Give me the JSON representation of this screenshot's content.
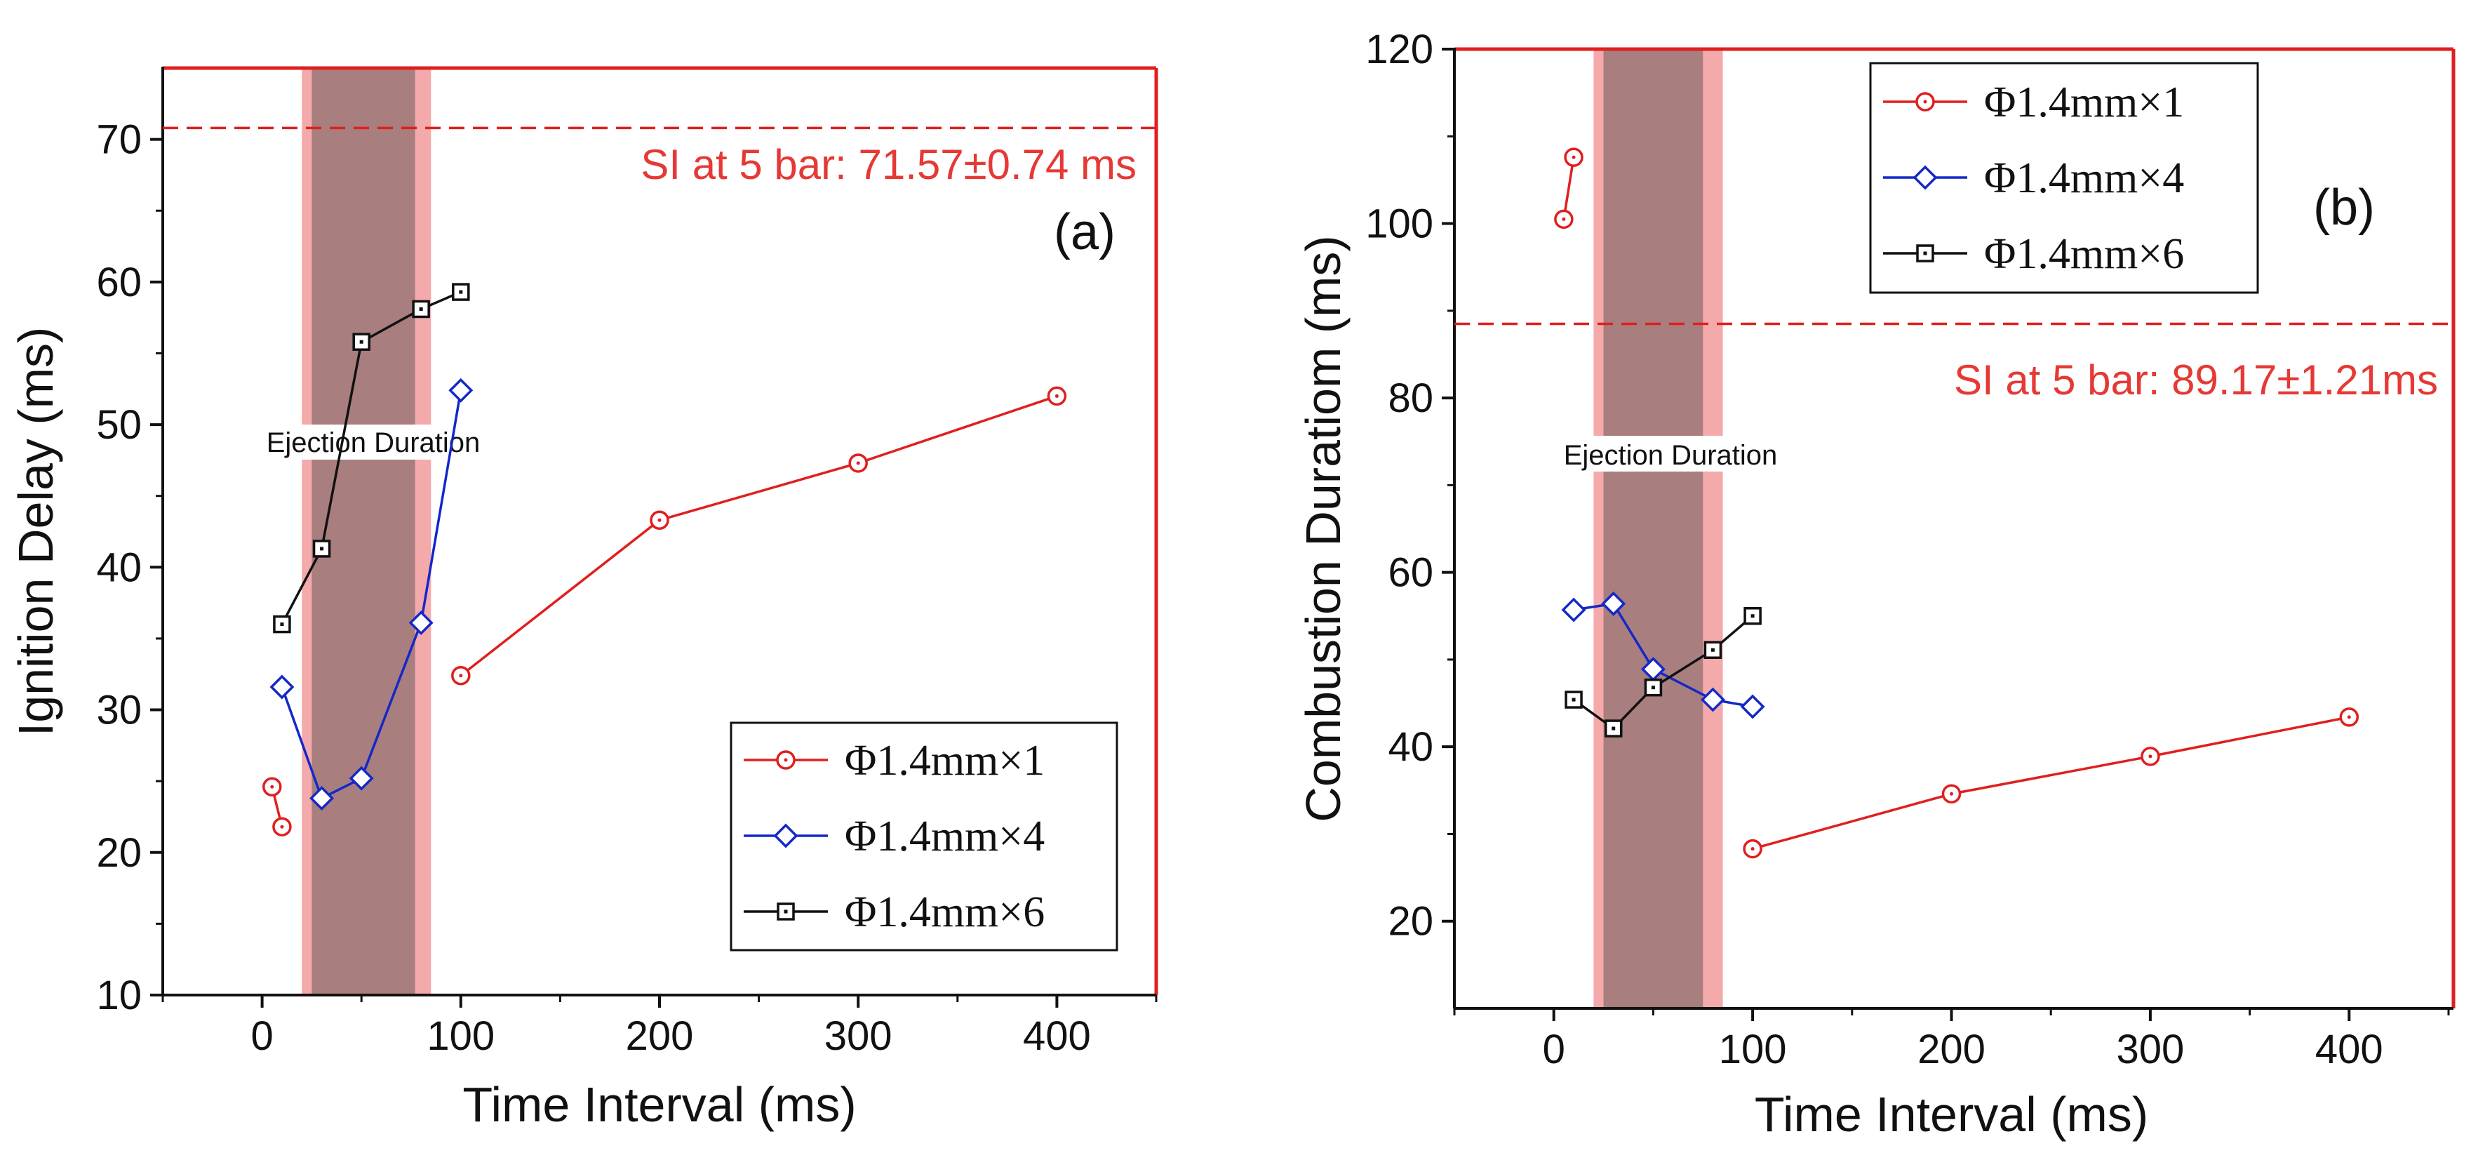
{
  "colors": {
    "frame_red": "#e01f1f",
    "series_red": "#e01f1f",
    "series_blue": "#1428c8",
    "series_black": "#111111",
    "band_light": "#f4aaaa",
    "band_dark": "#a87e7e"
  },
  "chart_data": [
    {
      "type": "line",
      "panel_label": "(a)",
      "xlabel": "Time Interval (ms)",
      "ylabel": "Ignition Delay (ms)",
      "xlim": [
        -50,
        450
      ],
      "ylim": [
        10,
        75
      ],
      "xticks": [
        0,
        100,
        200,
        300,
        400
      ],
      "yticks": [
        10,
        20,
        30,
        40,
        50,
        60,
        70
      ],
      "shaded_region": {
        "label": "Ejection Duration",
        "outer": [
          20,
          85
        ],
        "inner": [
          25,
          77
        ]
      },
      "reference_line": {
        "y": 70.8,
        "label": "SI at 5 bar:  71.57±0.74 ms"
      },
      "legend_position": "lower-right",
      "series": [
        {
          "name": "Φ1.4mm×1",
          "color": "#e01f1f",
          "marker": "circle",
          "segments": [
            [
              [
                5,
                24.6
              ],
              [
                10,
                21.8
              ]
            ],
            [
              [
                100,
                32.4
              ],
              [
                200,
                43.3
              ],
              [
                300,
                47.3
              ],
              [
                400,
                52.0
              ]
            ]
          ]
        },
        {
          "name": "Φ1.4mm×4",
          "color": "#1428c8",
          "marker": "diamond",
          "segments": [
            [
              [
                10,
                31.6
              ],
              [
                30,
                23.8
              ],
              [
                50,
                25.2
              ],
              [
                80,
                36.1
              ],
              [
                100,
                52.4
              ]
            ]
          ]
        },
        {
          "name": "Φ1.4mm×6",
          "color": "#111111",
          "marker": "square",
          "segments": [
            [
              [
                10,
                36.0
              ],
              [
                30,
                41.3
              ],
              [
                50,
                55.8
              ],
              [
                80,
                58.1
              ],
              [
                100,
                59.3
              ]
            ]
          ]
        }
      ]
    },
    {
      "type": "line",
      "panel_label": "(b)",
      "xlabel": "Time Interval (ms)",
      "ylabel": "Combustion Duratiom (ms)",
      "xlim": [
        -50,
        450
      ],
      "ylim": [
        10,
        120
      ],
      "xticks": [
        0,
        100,
        200,
        300,
        400
      ],
      "yticks": [
        20,
        40,
        60,
        80,
        100,
        120
      ],
      "shaded_region": {
        "label": "Ejection Duration",
        "outer": [
          20,
          85
        ],
        "inner": [
          25,
          75
        ]
      },
      "reference_line": {
        "y": 88.5,
        "label": "SI at 5 bar:  89.17±1.21ms"
      },
      "legend_position": "top",
      "series": [
        {
          "name": "Φ1.4mm×1",
          "color": "#e01f1f",
          "marker": "circle",
          "segments": [
            [
              [
                5,
                100.5
              ],
              [
                10,
                107.6
              ]
            ],
            [
              [
                100,
                28.3
              ],
              [
                200,
                34.6
              ],
              [
                300,
                38.9
              ],
              [
                400,
                43.4
              ]
            ]
          ]
        },
        {
          "name": "Φ1.4mm×4",
          "color": "#1428c8",
          "marker": "diamond",
          "segments": [
            [
              [
                10,
                55.7
              ],
              [
                30,
                56.4
              ],
              [
                50,
                48.9
              ],
              [
                80,
                45.4
              ],
              [
                100,
                44.6
              ]
            ]
          ]
        },
        {
          "name": "Φ1.4mm×6",
          "color": "#111111",
          "marker": "square",
          "segments": [
            [
              [
                10,
                45.4
              ],
              [
                30,
                42.1
              ],
              [
                50,
                46.8
              ],
              [
                80,
                51.1
              ],
              [
                100,
                55.0
              ]
            ]
          ]
        }
      ]
    }
  ]
}
